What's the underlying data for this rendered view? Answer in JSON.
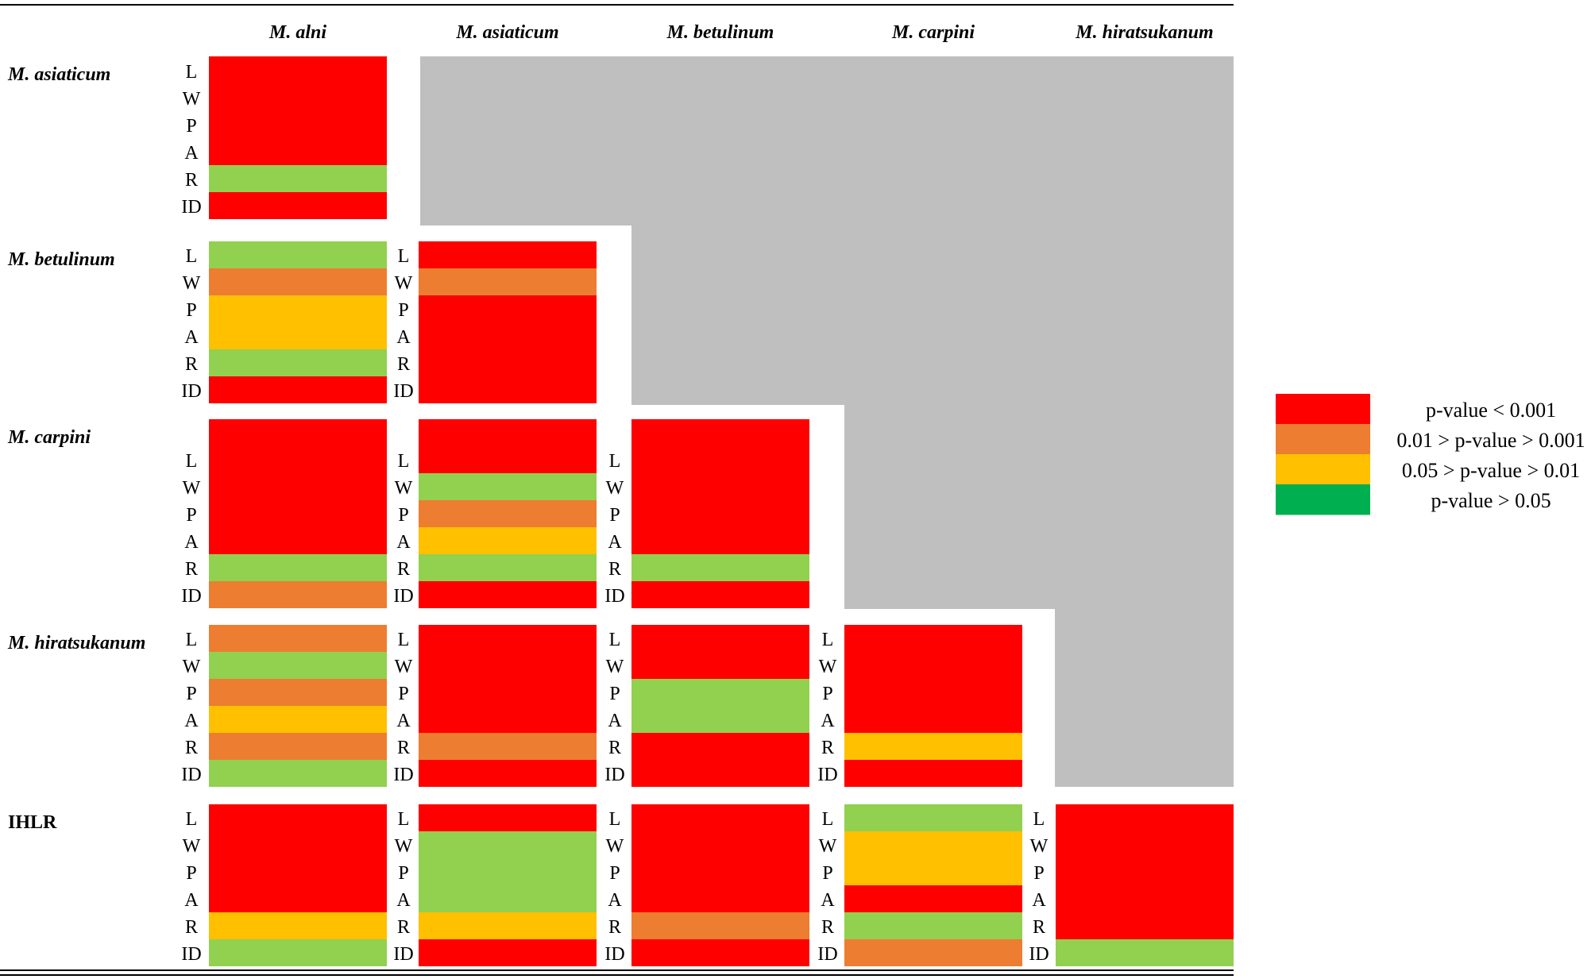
{
  "chart_data": {
    "type": "heatmap",
    "columns": [
      "M. alni",
      "M. asiaticum",
      "M. betulinum",
      "M. carpini",
      "M. hiratsukanum"
    ],
    "row_groups": [
      "M. asiaticum",
      "M. betulinum",
      "M. carpini",
      "M. hiratsukanum",
      "IHLR"
    ],
    "variables": [
      "L",
      "W",
      "P",
      "A",
      "R",
      "ID"
    ],
    "colors": {
      "red": "#FF0000",
      "orange": "#ED7D31",
      "yellow": "#FFC000",
      "green": "#00B050",
      "light_green": "#92D050",
      "masked_gray": "#BFBFBF"
    },
    "legend": [
      {
        "label": "p-value < 0.001",
        "color": "red"
      },
      {
        "label": "0.01 > p-value > 0.001",
        "color": "orange"
      },
      {
        "label": "0.05 > p-value > 0.01",
        "color": "yellow"
      },
      {
        "label": "p-value > 0.05",
        "color": "green"
      }
    ],
    "cells": [
      [
        "red",
        "red",
        "red",
        "red",
        "light_green",
        "red"
      ],
      [
        "light_green",
        "orange",
        "yellow",
        "yellow",
        "light_green",
        "red"
      ],
      [
        "red",
        "orange",
        "red",
        "red",
        "red",
        "red"
      ],
      [
        "red",
        "red",
        "red",
        "red",
        "light_green",
        "orange"
      ],
      [
        "red",
        "light_green",
        "orange",
        "yellow",
        "light_green",
        "red"
      ],
      [
        "red",
        "red",
        "red",
        "red",
        "light_green",
        "red"
      ],
      [
        "orange",
        "light_green",
        "orange",
        "yellow",
        "orange",
        "light_green"
      ],
      [
        "red",
        "red",
        "red",
        "red",
        "orange",
        "red"
      ],
      [
        "red",
        "red",
        "light_green",
        "light_green",
        "red",
        "red"
      ],
      [
        "red",
        "red",
        "red",
        "red",
        "yellow",
        "red"
      ],
      [
        "red",
        "red",
        "red",
        "red",
        "yellow",
        "light_green"
      ],
      [
        "red",
        "light_green",
        "light_green",
        "light_green",
        "yellow",
        "red"
      ],
      [
        "red",
        "red",
        "red",
        "red",
        "orange",
        "red"
      ],
      [
        "light_green",
        "yellow",
        "yellow",
        "red",
        "light_green",
        "orange"
      ],
      [
        "red",
        "red",
        "red",
        "red",
        "red",
        "light_green"
      ]
    ]
  }
}
